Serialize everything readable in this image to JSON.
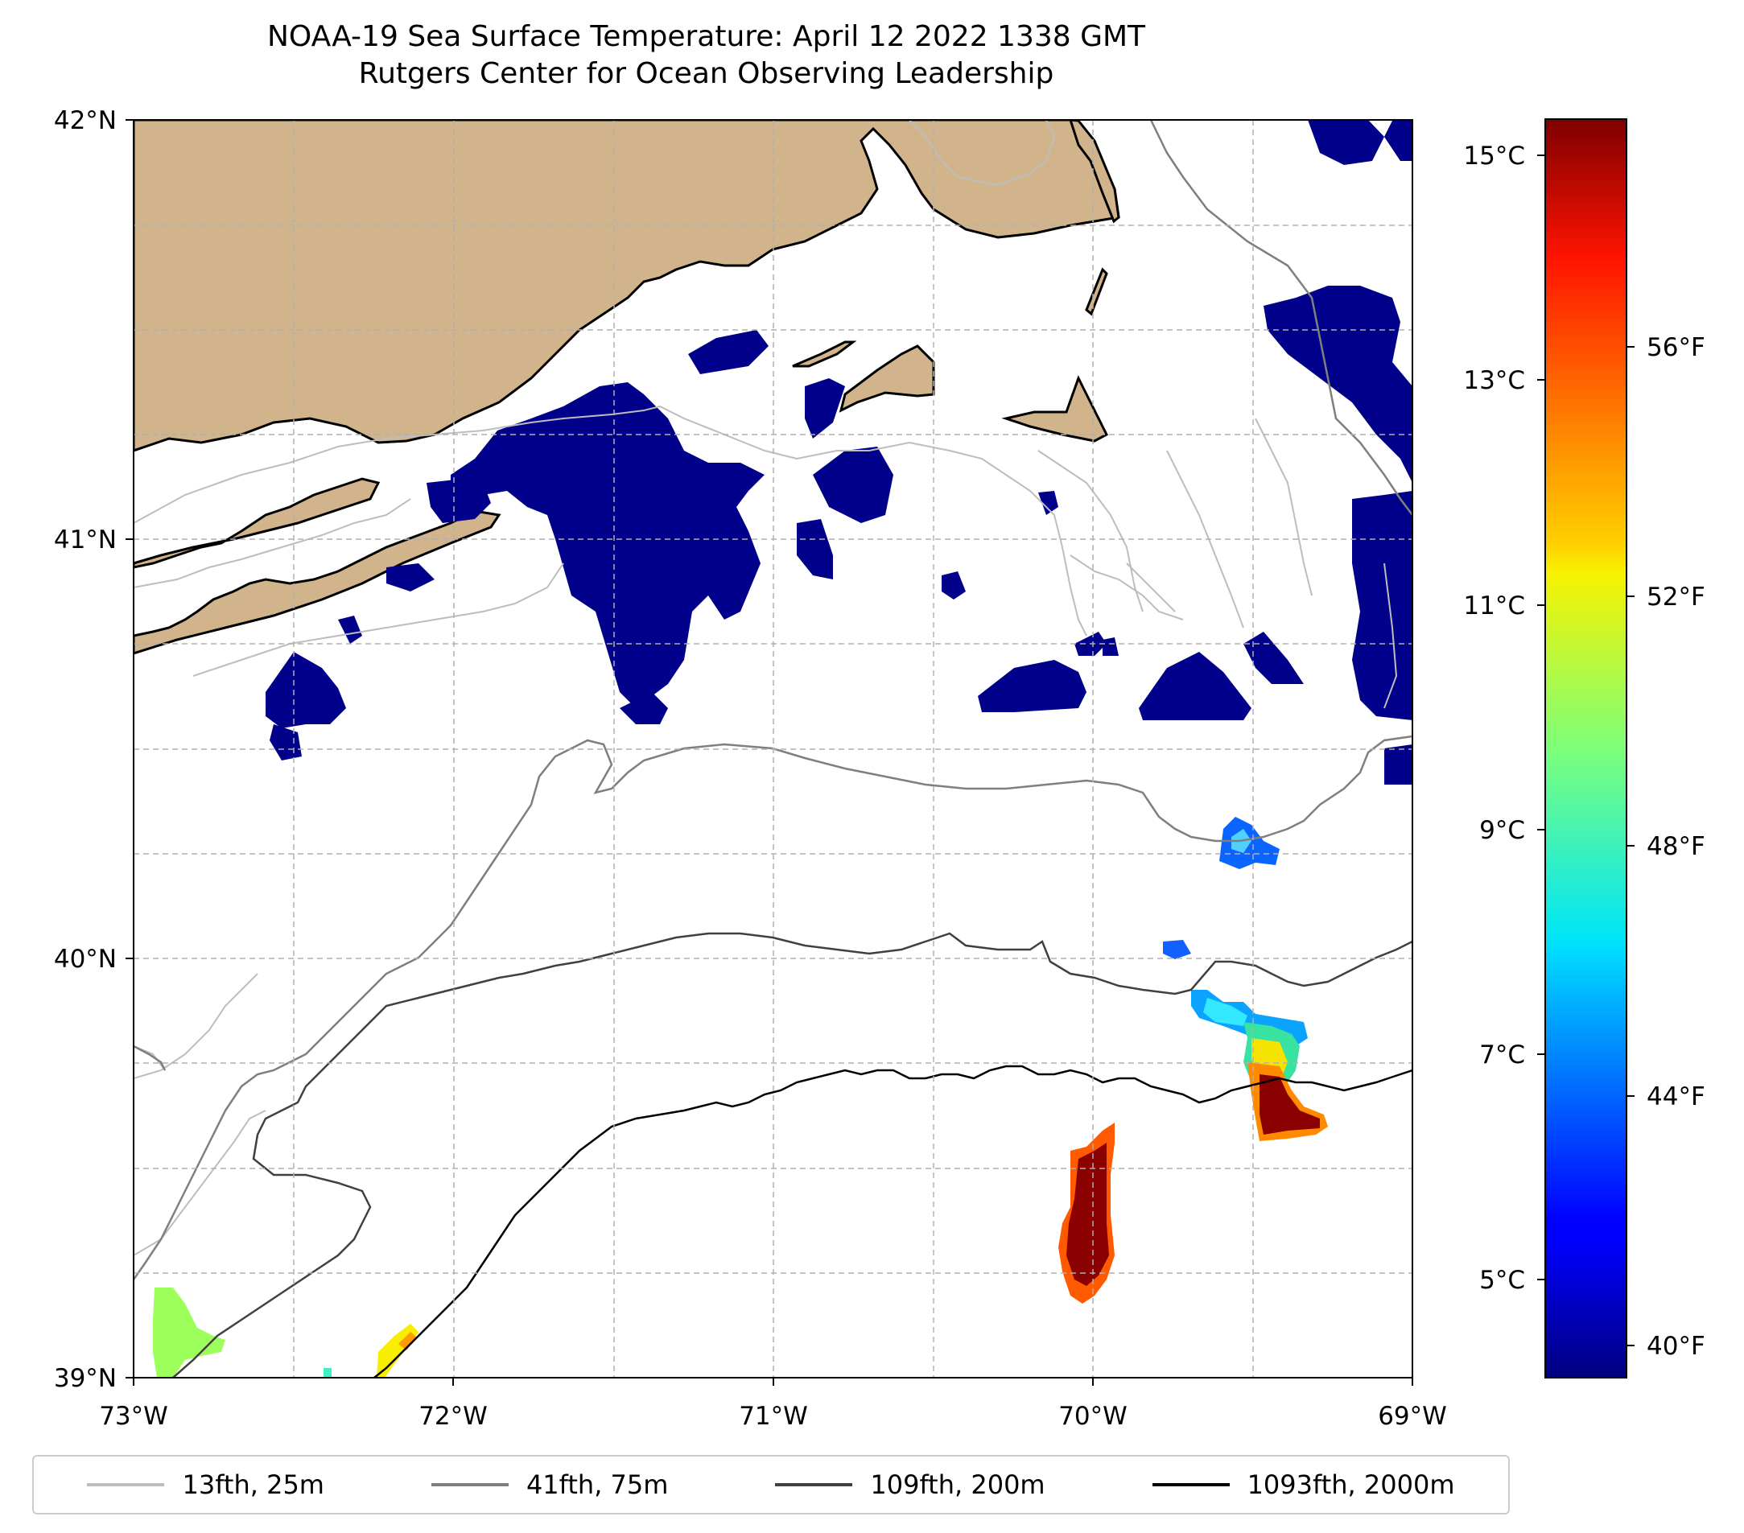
{
  "title": "NOAA-19 Sea Surface Temperature: April 12 2022 1338 GMT",
  "subtitle": "Rutgers Center for Ocean Observing Leadership",
  "map": {
    "lon_range": [
      -73,
      -69
    ],
    "lat_range": [
      39,
      42
    ],
    "x_ticks": [
      "73°W",
      "72°W",
      "71°W",
      "70°W",
      "69°W"
    ],
    "y_ticks": [
      "39°N",
      "40°N",
      "41°N",
      "42°N"
    ],
    "gridlines": true,
    "land_color": "#d2b48c",
    "cold_color": "#00008b"
  },
  "colorbar": {
    "celsius_ticks": [
      "5°C",
      "7°C",
      "9°C",
      "11°C",
      "13°C",
      "15°C"
    ],
    "fahrenheit_ticks": [
      "40°F",
      "44°F",
      "48°F",
      "52°F",
      "56°F"
    ],
    "colormap": "jet"
  },
  "legend": [
    {
      "label": "13fth, 25m",
      "color": "#bdbdbd"
    },
    {
      "label": "41fth, 75m",
      "color": "#7f7f7f"
    },
    {
      "label": "109fth, 200m",
      "color": "#404040"
    },
    {
      "label": "1093fth, 2000m",
      "color": "#000000"
    }
  ]
}
